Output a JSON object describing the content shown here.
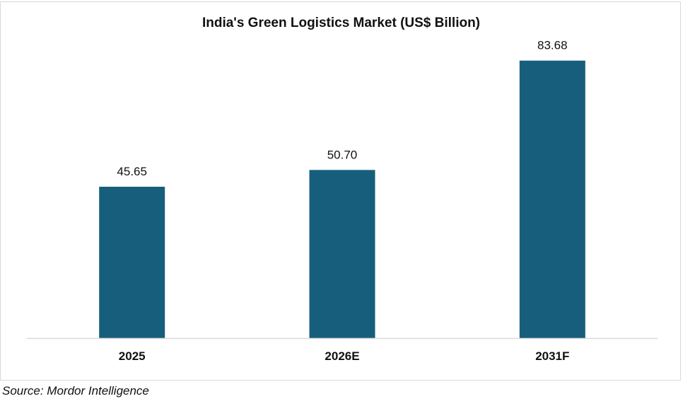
{
  "chart_data": {
    "type": "bar",
    "title": "India's Green Logistics Market (US$ Billion)",
    "categories": [
      "2025",
      "2026E",
      "2031F"
    ],
    "values": [
      45.65,
      50.7,
      83.68
    ],
    "value_labels": [
      "45.65",
      "50.70",
      "83.68"
    ],
    "xlabel": "",
    "ylabel": "",
    "ylim": [
      0,
      93
    ],
    "grid": false,
    "legend": "none",
    "bar_color": "#175e7d",
    "axis_color": "#d9d9d9"
  },
  "source": "Source: Mordor Intelligence"
}
